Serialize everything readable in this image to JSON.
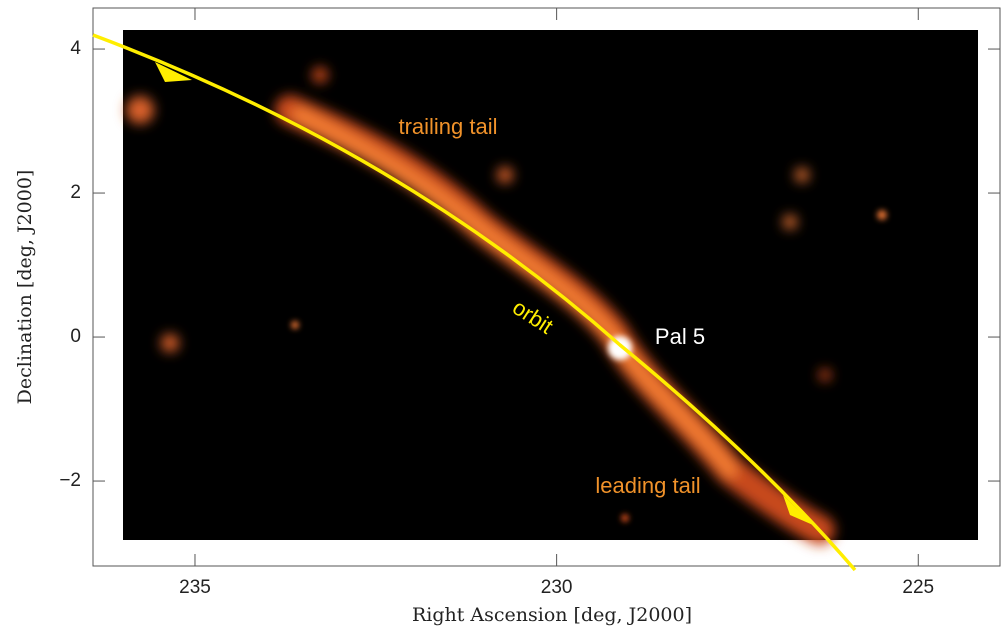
{
  "chart_data": {
    "type": "image",
    "xlabel": "Right Ascension [deg, J2000]",
    "ylabel": "Declination [deg, J2000]",
    "xlim": [
      236.41,
      223.87
    ],
    "xticks": [
      235,
      230,
      225
    ],
    "ylim": [
      -3.18,
      4.57
    ],
    "yticks": [
      4,
      2,
      0,
      {
        "value": -2,
        "label": "−2"
      }
    ],
    "annotations": [
      "trailing tail",
      "orbit",
      "Pal 5",
      "leading tail"
    ]
  }
}
